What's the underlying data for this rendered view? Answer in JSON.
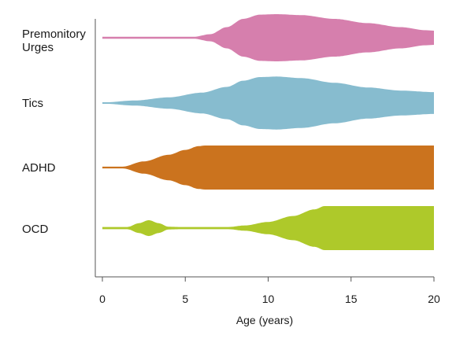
{
  "chart_data": {
    "type": "area",
    "xlabel": "Age (years)",
    "xlim": [
      0,
      20
    ],
    "x_ticks": [
      0,
      5,
      10,
      15,
      20
    ],
    "series": [
      {
        "name": "Premonitory Urges",
        "label_lines": [
          "Premonitory",
          "Urges"
        ],
        "color": "#d67fad",
        "profile": [
          [
            0,
            0.04
          ],
          [
            5.5,
            0.04
          ],
          [
            6.5,
            0.15
          ],
          [
            7.5,
            0.45
          ],
          [
            8.5,
            0.8
          ],
          [
            9.5,
            0.98
          ],
          [
            10.5,
            1.0
          ],
          [
            12,
            0.96
          ],
          [
            14,
            0.8
          ],
          [
            16,
            0.62
          ],
          [
            18,
            0.45
          ],
          [
            19.5,
            0.32
          ],
          [
            20,
            0.3
          ]
        ]
      },
      {
        "name": "Tics",
        "color": "#87bccf",
        "profile": [
          [
            0,
            0.02
          ],
          [
            2,
            0.1
          ],
          [
            4,
            0.22
          ],
          [
            6,
            0.4
          ],
          [
            7.5,
            0.62
          ],
          [
            8.5,
            0.86
          ],
          [
            9.5,
            1.0
          ],
          [
            10.5,
            1.02
          ],
          [
            12,
            0.96
          ],
          [
            14,
            0.78
          ],
          [
            16,
            0.6
          ],
          [
            18,
            0.48
          ],
          [
            20,
            0.42
          ]
        ]
      },
      {
        "name": "ADHD",
        "color": "#cb731e",
        "profile": [
          [
            0,
            0.04
          ],
          [
            1.2,
            0.04
          ],
          [
            2.5,
            0.28
          ],
          [
            4,
            0.58
          ],
          [
            5,
            0.8
          ],
          [
            5.8,
            0.97
          ],
          [
            6.2,
            1.0
          ],
          [
            20,
            1.0
          ]
        ]
      },
      {
        "name": "OCD",
        "color": "#aec92a",
        "profile": [
          [
            0,
            0.05
          ],
          [
            1.5,
            0.05
          ],
          [
            2.2,
            0.22
          ],
          [
            2.8,
            0.36
          ],
          [
            3.4,
            0.22
          ],
          [
            4,
            0.06
          ],
          [
            4.8,
            0.05
          ],
          [
            7.6,
            0.05
          ],
          [
            8.6,
            0.12
          ],
          [
            10,
            0.28
          ],
          [
            11.5,
            0.55
          ],
          [
            12.8,
            0.85
          ],
          [
            13.4,
            1.0
          ],
          [
            20,
            1.0
          ]
        ]
      }
    ]
  }
}
